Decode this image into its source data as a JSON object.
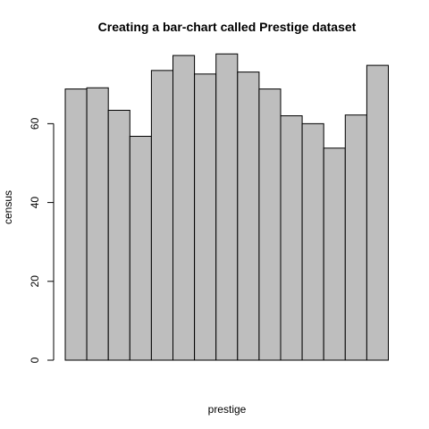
{
  "chart_data": {
    "type": "bar",
    "title": "Creating a bar-chart called Prestige dataset",
    "xlabel": "prestige",
    "ylabel": "census",
    "values": [
      68.8,
      69.1,
      63.4,
      56.8,
      73.5,
      77.3,
      72.6,
      77.7,
      73.1,
      68.8,
      62.0,
      60.0,
      53.8,
      62.2,
      74.8
    ],
    "ylim": [
      0,
      78
    ],
    "yticks": [
      "0",
      "20",
      "40",
      "60"
    ],
    "ytick_values": [
      0,
      20,
      40,
      60
    ],
    "grid": false,
    "bar_color": "#bebebe",
    "border_color": "#000000"
  }
}
